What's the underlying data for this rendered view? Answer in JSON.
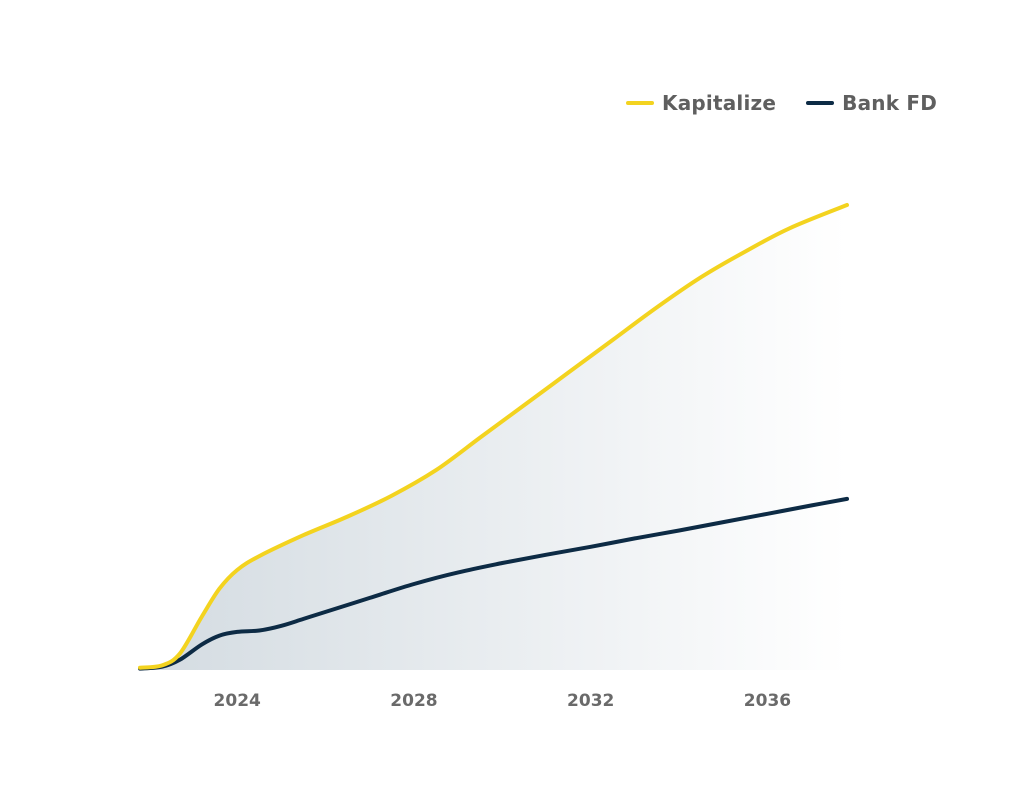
{
  "colors": {
    "kapitalize": "#f3d31f",
    "bank_fd": "#0d2b45",
    "fill_start": "#d3dbe1",
    "fill_end": "#ffffff"
  },
  "legend": {
    "position": "top-right",
    "items": [
      {
        "label": "Kapitalize",
        "color": "#f3d31f"
      },
      {
        "label": "Bank FD",
        "color": "#0d2b45"
      }
    ]
  },
  "chart_data": {
    "type": "line",
    "title": "",
    "xlabel": "",
    "ylabel": "",
    "x_ticks": [
      "2024",
      "2028",
      "2032",
      "2036"
    ],
    "xlim": [
      2021.8,
      2037.8
    ],
    "ylim": [
      0,
      100
    ],
    "grid": false,
    "area_between_series": true,
    "series": [
      {
        "name": "Kapitalize",
        "color": "#f3d31f",
        "points": [
          [
            2021.8,
            0.5
          ],
          [
            2022.3,
            1.0
          ],
          [
            2022.7,
            3.5
          ],
          [
            2023.2,
            11.5
          ],
          [
            2023.6,
            17.5
          ],
          [
            2024.0,
            21.5
          ],
          [
            2024.5,
            24.5
          ],
          [
            2025.5,
            29.0
          ],
          [
            2026.5,
            33.0
          ],
          [
            2027.5,
            37.5
          ],
          [
            2028.5,
            43.0
          ],
          [
            2029.5,
            50.0
          ],
          [
            2030.5,
            57.0
          ],
          [
            2031.5,
            64.0
          ],
          [
            2032.5,
            71.0
          ],
          [
            2033.5,
            78.0
          ],
          [
            2034.5,
            84.5
          ],
          [
            2035.5,
            90.0
          ],
          [
            2036.5,
            95.0
          ],
          [
            2037.8,
            100.0
          ]
        ]
      },
      {
        "name": "Bank FD",
        "color": "#0d2b45",
        "points": [
          [
            2021.8,
            0.3
          ],
          [
            2022.3,
            0.7
          ],
          [
            2022.7,
            2.2
          ],
          [
            2023.2,
            5.5
          ],
          [
            2023.6,
            7.4
          ],
          [
            2024.0,
            8.2
          ],
          [
            2024.5,
            8.5
          ],
          [
            2025.0,
            9.5
          ],
          [
            2025.5,
            11.0
          ],
          [
            2026.0,
            12.5
          ],
          [
            2027.0,
            15.5
          ],
          [
            2028.0,
            18.5
          ],
          [
            2029.0,
            21.0
          ],
          [
            2030.0,
            23.0
          ],
          [
            2031.0,
            24.8
          ],
          [
            2032.0,
            26.5
          ],
          [
            2033.0,
            28.3
          ],
          [
            2034.0,
            30.0
          ],
          [
            2035.0,
            31.8
          ],
          [
            2036.0,
            33.6
          ],
          [
            2037.0,
            35.4
          ],
          [
            2037.8,
            36.8
          ]
        ]
      }
    ]
  }
}
